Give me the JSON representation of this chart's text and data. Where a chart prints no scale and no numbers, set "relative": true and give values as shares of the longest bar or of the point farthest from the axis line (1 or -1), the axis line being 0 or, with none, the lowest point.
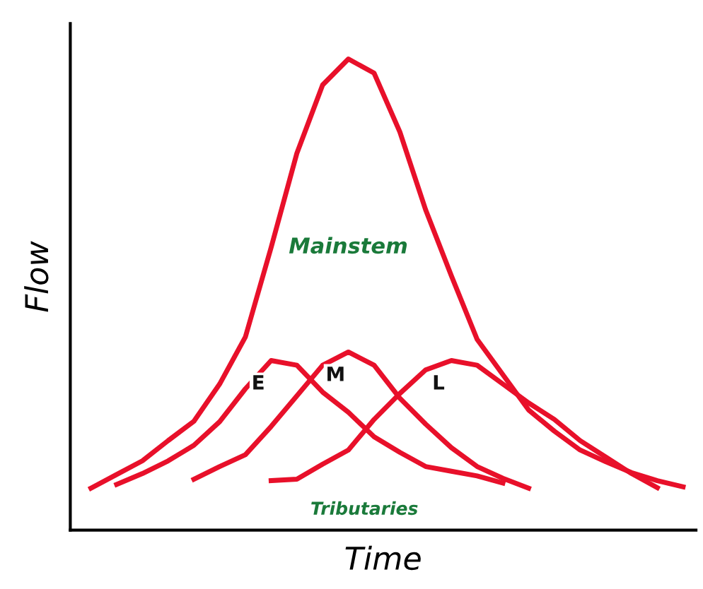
{
  "chart_data": {
    "type": "line",
    "relative": true,
    "xlabel": "Time",
    "ylabel": "Flow",
    "marker": "none",
    "line_style": "solid",
    "categories": [
      null,
      null,
      null,
      null,
      null,
      null,
      null,
      null,
      null,
      null,
      null,
      null,
      null,
      null,
      null,
      null,
      null,
      null,
      null,
      null,
      null,
      null,
      null,
      null
    ],
    "series": [
      {
        "name": "Mainstem",
        "color": "#e8102a",
        "values": [
          0.089,
          0.118,
          0.147,
          0.19,
          0.231,
          0.31,
          0.41,
          0.6,
          0.8,
          0.945,
          1,
          0.97,
          0.845,
          0.68,
          0.54,
          0.405,
          0.33,
          0.255,
          0.21,
          0.17,
          0.145,
          0.122,
          0.105,
          0.092
        ]
      },
      {
        "name": "E",
        "color": "#e8102a",
        "values": [
          null,
          0.097,
          0.12,
          0.147,
          0.18,
          0.23,
          0.3,
          0.36,
          0.35,
          0.293,
          0.25,
          0.198,
          0.165,
          0.135,
          0.125,
          0.115,
          0.1,
          null,
          null,
          null,
          null,
          null,
          null,
          null
        ]
      },
      {
        "name": "M",
        "color": "#e8102a",
        "values": [
          null,
          null,
          null,
          null,
          0.108,
          0.135,
          0.16,
          0.22,
          0.285,
          0.35,
          0.378,
          0.35,
          0.28,
          0.225,
          0.175,
          0.135,
          0.11,
          0.089,
          null,
          null,
          null,
          null,
          null,
          null
        ]
      },
      {
        "name": "L",
        "color": "#e8102a",
        "values": [
          null,
          null,
          null,
          null,
          null,
          null,
          null,
          0.105,
          0.108,
          0.14,
          0.17,
          0.235,
          0.29,
          0.34,
          0.36,
          0.35,
          0.31,
          0.27,
          0.235,
          0.19,
          0.155,
          0.12,
          0.09,
          null
        ]
      }
    ],
    "annotations": [
      "Tributaries"
    ]
  }
}
